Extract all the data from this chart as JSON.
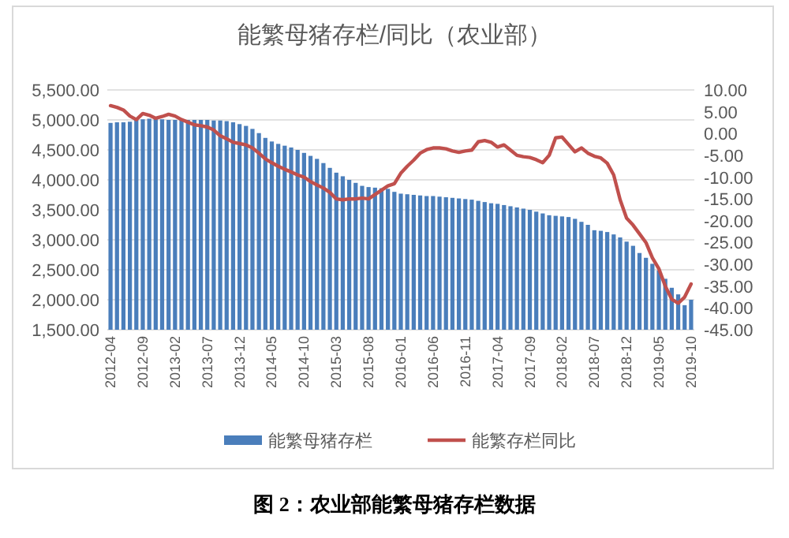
{
  "chart_data": {
    "type": "bar",
    "title": "能繁母猪存栏/同比（农业部）",
    "categories": [
      "2012-04",
      null,
      null,
      null,
      null,
      "2012-09",
      null,
      null,
      null,
      null,
      "2013-02",
      null,
      null,
      null,
      null,
      "2013-07",
      null,
      null,
      null,
      null,
      "2013-12",
      null,
      null,
      null,
      null,
      "2014-05",
      null,
      null,
      null,
      null,
      "2014-10",
      null,
      null,
      null,
      null,
      "2015-03",
      null,
      null,
      null,
      null,
      "2015-08",
      null,
      null,
      null,
      null,
      "2016-01",
      null,
      null,
      null,
      null,
      "2016-06",
      null,
      null,
      null,
      null,
      "2016-11",
      null,
      null,
      null,
      null,
      "2017-04",
      null,
      null,
      null,
      null,
      "2017-09",
      null,
      null,
      null,
      null,
      "2018-02",
      null,
      null,
      null,
      null,
      "2018-07",
      null,
      null,
      null,
      null,
      "2018-12",
      null,
      null,
      null,
      null,
      "2019-05",
      null,
      null,
      null,
      null,
      "2019-10"
    ],
    "series": [
      {
        "name": "能繁母猪存栏",
        "color": "#4a7ebb",
        "values": [
          4950,
          4960,
          4960,
          4970,
          5000,
          5010,
          5020,
          5020,
          5010,
          5000,
          5000,
          5000,
          5000,
          5000,
          5000,
          5000,
          4990,
          4990,
          4980,
          4960,
          4930,
          4900,
          4850,
          4780,
          4700,
          4640,
          4600,
          4570,
          4540,
          4500,
          4450,
          4400,
          4350,
          4280,
          4200,
          4120,
          4060,
          4000,
          3950,
          3900,
          3880,
          3870,
          3860,
          3850,
          3800,
          3770,
          3760,
          3750,
          3740,
          3730,
          3730,
          3720,
          3710,
          3700,
          3690,
          3680,
          3670,
          3650,
          3630,
          3610,
          3600,
          3580,
          3560,
          3540,
          3520,
          3500,
          3470,
          3440,
          3410,
          3400,
          3390,
          3380,
          3350,
          3300,
          3250,
          3160,
          3150,
          3130,
          3090,
          3040,
          2970,
          2900,
          2780,
          2700,
          2600,
          2490,
          2350,
          2200,
          2090,
          1910,
          2000
        ]
      },
      {
        "name": "能繁存栏同比",
        "type": "line",
        "axis": "y2",
        "color": "#c0504d",
        "values": [
          6.4,
          6.0,
          5.4,
          4.0,
          3.2,
          4.6,
          4.2,
          3.5,
          3.9,
          4.4,
          4.0,
          3.2,
          2.6,
          2.0,
          1.8,
          1.5,
          0.8,
          -0.5,
          -1.2,
          -2.0,
          -2.3,
          -2.6,
          -3.3,
          -4.5,
          -5.8,
          -6.7,
          -7.5,
          -8.2,
          -8.8,
          -9.5,
          -10.0,
          -11.0,
          -11.8,
          -12.5,
          -13.5,
          -15.0,
          -15.2,
          -15.0,
          -15.0,
          -14.8,
          -15.0,
          -14.0,
          -13.0,
          -12.0,
          -11.5,
          -9.1,
          -7.5,
          -6.1,
          -4.5,
          -3.7,
          -3.3,
          -3.3,
          -3.5,
          -4.0,
          -4.3,
          -4.0,
          -3.8,
          -1.9,
          -1.6,
          -2.0,
          -3.1,
          -2.6,
          -3.8,
          -5.0,
          -5.3,
          -5.5,
          -6.0,
          -6.7,
          -5.0,
          -1.0,
          -0.8,
          -2.5,
          -4.2,
          -3.3,
          -4.5,
          -5.2,
          -5.6,
          -6.8,
          -9.5,
          -15.2,
          -19.4,
          -21.0,
          -23.0,
          -25.0,
          -28.5,
          -31.0,
          -35.0,
          -38.0,
          -38.9,
          -37.5,
          -34.5
        ]
      }
    ],
    "ylim": [
      1500,
      5500
    ],
    "yticks": [
      {
        "value": 1500,
        "label": "1,500.00"
      },
      {
        "value": 2000,
        "label": "2,000.00"
      },
      {
        "value": 2500,
        "label": "2,500.00"
      },
      {
        "value": 3000,
        "label": "3,000.00"
      },
      {
        "value": 3500,
        "label": "3,500.00"
      },
      {
        "value": 4000,
        "label": "4,000.00"
      },
      {
        "value": 4500,
        "label": "4,500.00"
      },
      {
        "value": 5000,
        "label": "5,000.00"
      },
      {
        "value": 5500,
        "label": "5,500.00"
      }
    ],
    "y2lim": [
      -45,
      10
    ],
    "y2ticks": [
      {
        "value": 10,
        "label": "10.00"
      },
      {
        "value": 5,
        "label": "5.00"
      },
      {
        "value": 0,
        "label": "0.00"
      },
      {
        "value": -5,
        "label": "-5.00"
      },
      {
        "value": -10,
        "label": "-10.00"
      },
      {
        "value": -15,
        "label": "-15.00"
      },
      {
        "value": -20,
        "label": "-20.00"
      },
      {
        "value": -25,
        "label": "-25.00"
      },
      {
        "value": -30,
        "label": "-30.00"
      },
      {
        "value": -35,
        "label": "-35.00"
      },
      {
        "value": -40,
        "label": "-40.00"
      },
      {
        "value": -45,
        "label": "-45.00"
      }
    ],
    "grid": "y",
    "legend": "bottom",
    "annotations": [
      "图 2：农业部能繁母猪存栏数据"
    ]
  }
}
